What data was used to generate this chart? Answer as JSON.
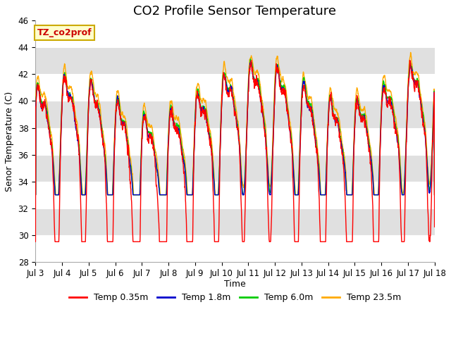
{
  "title": "CO2 Profile Sensor Temperature",
  "ylabel": "Senor Temperature (C)",
  "xlabel": "Time",
  "ylim": [
    28,
    46
  ],
  "yticks": [
    28,
    30,
    32,
    34,
    36,
    38,
    40,
    42,
    44,
    46
  ],
  "xtick_labels": [
    "Jul 3",
    "Jul 4",
    "Jul 5",
    "Jul 6",
    "Jul 7",
    "Jul 8",
    "Jul 9",
    "Jul 10",
    "Jul 11",
    "Jul 12",
    "Jul 13",
    "Jul 14",
    "Jul 15",
    "Jul 16",
    "Jul 17",
    "Jul 18"
  ],
  "legend_label": "TZ_co2prof",
  "series_labels": [
    "Temp 0.35m",
    "Temp 1.8m",
    "Temp 6.0m",
    "Temp 23.5m"
  ],
  "series_colors": [
    "#ff0000",
    "#0000cc",
    "#00cc00",
    "#ffaa00"
  ],
  "background_color": "#ffffff",
  "plot_bg_color": "#e0e0e0",
  "band_colors": [
    "#ffffff",
    "#e0e0e0"
  ],
  "title_fontsize": 13,
  "label_fontsize": 9,
  "tick_fontsize": 8.5,
  "legend_box_color": "#ffffcc",
  "legend_box_edge": "#ccaa00"
}
